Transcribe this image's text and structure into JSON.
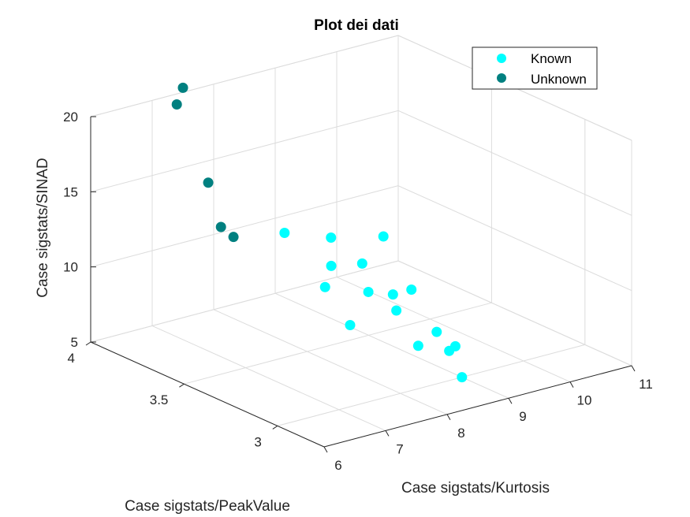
{
  "chart_data": {
    "type": "scatter",
    "title": "Plot dei dati",
    "xlabel": "Case sigstats/Kurtosis",
    "ylabel": "Case sigstats/PeakValue",
    "zlabel": "Case sigstats/SINAD",
    "xlim": [
      6,
      11
    ],
    "ylim": [
      2.75,
      4
    ],
    "zlim": [
      5,
      20
    ],
    "xticks": [
      "6",
      "7",
      "8",
      "9",
      "10",
      "11"
    ],
    "yticks": [
      "3",
      "3.5",
      "4"
    ],
    "zticks": [
      "5",
      "10",
      "15",
      "20"
    ],
    "grid": true,
    "legend_position": "top-right",
    "series": [
      {
        "name": "Known",
        "color": "#00FFFF",
        "points": [
          {
            "x": 8.9,
            "y": 3.7,
            "z": 7.2
          },
          {
            "x": 9.3,
            "y": 3.6,
            "z": 7.0
          },
          {
            "x": 8.7,
            "y": 3.5,
            "z": 6.0
          },
          {
            "x": 10.0,
            "y": 3.6,
            "z": 6.4
          },
          {
            "x": 9.7,
            "y": 3.6,
            "z": 6.4
          },
          {
            "x": 9.2,
            "y": 3.3,
            "z": 5.2
          },
          {
            "x": 9.3,
            "y": 3.45,
            "z": 6.6
          },
          {
            "x": 9.5,
            "y": 3.3,
            "z": 5.8
          },
          {
            "x": 9.0,
            "y": 3.0,
            "z": 5.0
          },
          {
            "x": 9.5,
            "y": 3.2,
            "z": 5.4
          },
          {
            "x": 9.4,
            "y": 3.2,
            "z": 5.2
          },
          {
            "x": 9.0,
            "y": 3.95,
            "z": 9.3
          },
          {
            "x": 9.0,
            "y": 3.7,
            "z": 8.5
          },
          {
            "x": 9.2,
            "y": 3.6,
            "z": 9.0
          },
          {
            "x": 9.3,
            "y": 3.8,
            "z": 9.5
          },
          {
            "x": 10.0,
            "y": 3.75,
            "z": 9.1
          }
        ]
      },
      {
        "name": "Unknown",
        "color": "#008080",
        "points": [
          {
            "x": 7.5,
            "y": 4.0,
            "z": 20.3
          },
          {
            "x": 7.4,
            "y": 4.0,
            "z": 19.3
          },
          {
            "x": 7.0,
            "y": 3.7,
            "z": 16.2
          },
          {
            "x": 6.6,
            "y": 3.5,
            "z": 14.8
          },
          {
            "x": 6.5,
            "y": 3.4,
            "z": 14.8
          }
        ]
      }
    ]
  }
}
